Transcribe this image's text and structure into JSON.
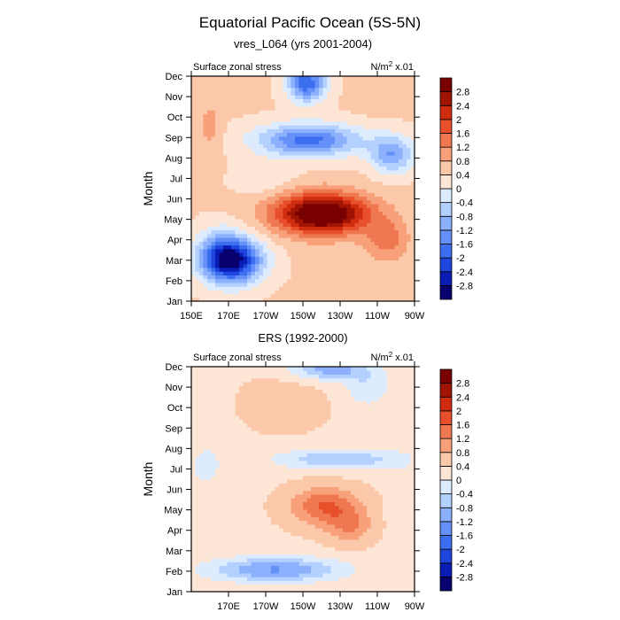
{
  "page": {
    "title": "Equatorial Pacific Ocean (5S-5N)"
  },
  "colors": {
    "levels": [
      "#08006e",
      "#0a1cb6",
      "#1e46dc",
      "#3c6ef0",
      "#6490f8",
      "#8cb0fc",
      "#b4d0fe",
      "#dcebfe",
      "#fde6d6",
      "#fcc8aa",
      "#f8a07a",
      "#f07850",
      "#e8502c",
      "#d02c10",
      "#a01404",
      "#780000"
    ],
    "frame": "#000000",
    "background": "#ffffff"
  },
  "chart_data": [
    {
      "type": "heatmap",
      "id": "top",
      "subtitle": "vres_L064 (yrs 2001-2004)",
      "left_label": "Surface zonal stress",
      "right_label_main": "N/m",
      "right_label_sup": "2",
      "right_label_tail": " x.01",
      "ylabel": "Month",
      "x_tick_labels": [
        "150E",
        "170E",
        "170W",
        "150W",
        "130W",
        "110W",
        "90W"
      ],
      "x_range_deg_east": [
        150,
        270
      ],
      "y_tick_labels": [
        "Jan",
        "Feb",
        "Mar",
        "Apr",
        "May",
        "Jun",
        "Jul",
        "Aug",
        "Sep",
        "Oct",
        "Nov",
        "Dec"
      ],
      "colorbar": {
        "labels": [
          "-2.8",
          "-2.4",
          "-2",
          "-1.6",
          "-1.2",
          "-0.8",
          "-0.4",
          "0",
          "0.4",
          "0.8",
          "1.2",
          "1.6",
          "2",
          "2.4",
          "2.8"
        ],
        "edges": [
          -2.8,
          -2.4,
          -2.0,
          -1.6,
          -1.2,
          -0.8,
          -0.4,
          0.0,
          0.4,
          0.8,
          1.2,
          1.6,
          2.0,
          2.4,
          2.8
        ]
      },
      "features": {
        "base": 0.45,
        "blobs": [
          {
            "lon": 220,
            "month": 4.3,
            "lon_width": 25,
            "month_width": 1.0,
            "amp": 3.2
          },
          {
            "lon": 255,
            "month": 3.0,
            "lon_width": 12,
            "month_width": 1.1,
            "amp": 0.9
          },
          {
            "lon": 172,
            "month": 2.0,
            "lon_width": 16,
            "month_width": 1.1,
            "amp": -3.3
          },
          {
            "lon": 165,
            "month": 2.5,
            "lon_width": 12,
            "month_width": 1.2,
            "amp": -0.8
          },
          {
            "lon": 213,
            "month": 7.9,
            "lon_width": 28,
            "month_width": 0.8,
            "amp": -2.2
          },
          {
            "lon": 258,
            "month": 7.2,
            "lon_width": 12,
            "month_width": 0.9,
            "amp": -1.6
          },
          {
            "lon": 212,
            "month": 10.7,
            "lon_width": 10,
            "month_width": 0.9,
            "amp": -2.4
          },
          {
            "lon": 160,
            "month": 8.5,
            "lon_width": 6,
            "month_width": 1.5,
            "amp": 0.5
          },
          {
            "lon": 250,
            "month": 10.5,
            "lon_width": 10,
            "month_width": 1.0,
            "amp": 0.3
          },
          {
            "lon": 190,
            "month": 6.0,
            "lon_width": 16,
            "month_width": 0.8,
            "amp": -0.4
          }
        ]
      }
    },
    {
      "type": "heatmap",
      "id": "bottom",
      "subtitle": "ERS (1992-2000)",
      "left_label": "Surface zonal stress",
      "right_label_main": "N/m",
      "right_label_sup": "2",
      "right_label_tail": " x.01",
      "ylabel": "Month",
      "x_tick_labels": [
        "170E",
        "170W",
        "150W",
        "130W",
        "110W",
        "90W"
      ],
      "x_range_deg_east": [
        150,
        270
      ],
      "y_tick_labels": [
        "Jan",
        "Feb",
        "Mar",
        "Apr",
        "May",
        "Jun",
        "Jul",
        "Aug",
        "Sep",
        "Oct",
        "Nov",
        "Dec"
      ],
      "colorbar": {
        "labels": [
          "-2.8",
          "-2.4",
          "-2",
          "-1.6",
          "-1.2",
          "-0.8",
          "-0.4",
          "0",
          "0.4",
          "0.8",
          "1.2",
          "1.6",
          "2",
          "2.4",
          "2.8"
        ],
        "edges": [
          -2.8,
          -2.4,
          -2.0,
          -1.6,
          -1.2,
          -0.8,
          -0.4,
          0.0,
          0.4,
          0.8,
          1.2,
          1.6,
          2.0,
          2.4,
          2.8
        ]
      },
      "features": {
        "base": 0.35,
        "blobs": [
          {
            "lon": 222,
            "month": 4.2,
            "lon_width": 18,
            "month_width": 0.9,
            "amp": 1.3
          },
          {
            "lon": 235,
            "month": 3.2,
            "lon_width": 12,
            "month_width": 0.8,
            "amp": 0.8
          },
          {
            "lon": 195,
            "month": 1.1,
            "lon_width": 35,
            "month_width": 0.6,
            "amp": -1.6
          },
          {
            "lon": 230,
            "month": 6.5,
            "lon_width": 35,
            "month_width": 0.5,
            "amp": -1.1
          },
          {
            "lon": 225,
            "month": 10.9,
            "lon_width": 20,
            "month_width": 0.5,
            "amp": -1.4
          },
          {
            "lon": 245,
            "month": 10.0,
            "lon_width": 12,
            "month_width": 0.9,
            "amp": -0.7
          },
          {
            "lon": 200,
            "month": 9.2,
            "lon_width": 20,
            "month_width": 1.2,
            "amp": 0.3
          },
          {
            "lon": 158,
            "month": 6.2,
            "lon_width": 8,
            "month_width": 1.0,
            "amp": -0.6
          },
          {
            "lon": 262,
            "month": 4.5,
            "lon_width": 6,
            "month_width": 2.0,
            "amp": -0.3
          }
        ]
      }
    }
  ]
}
